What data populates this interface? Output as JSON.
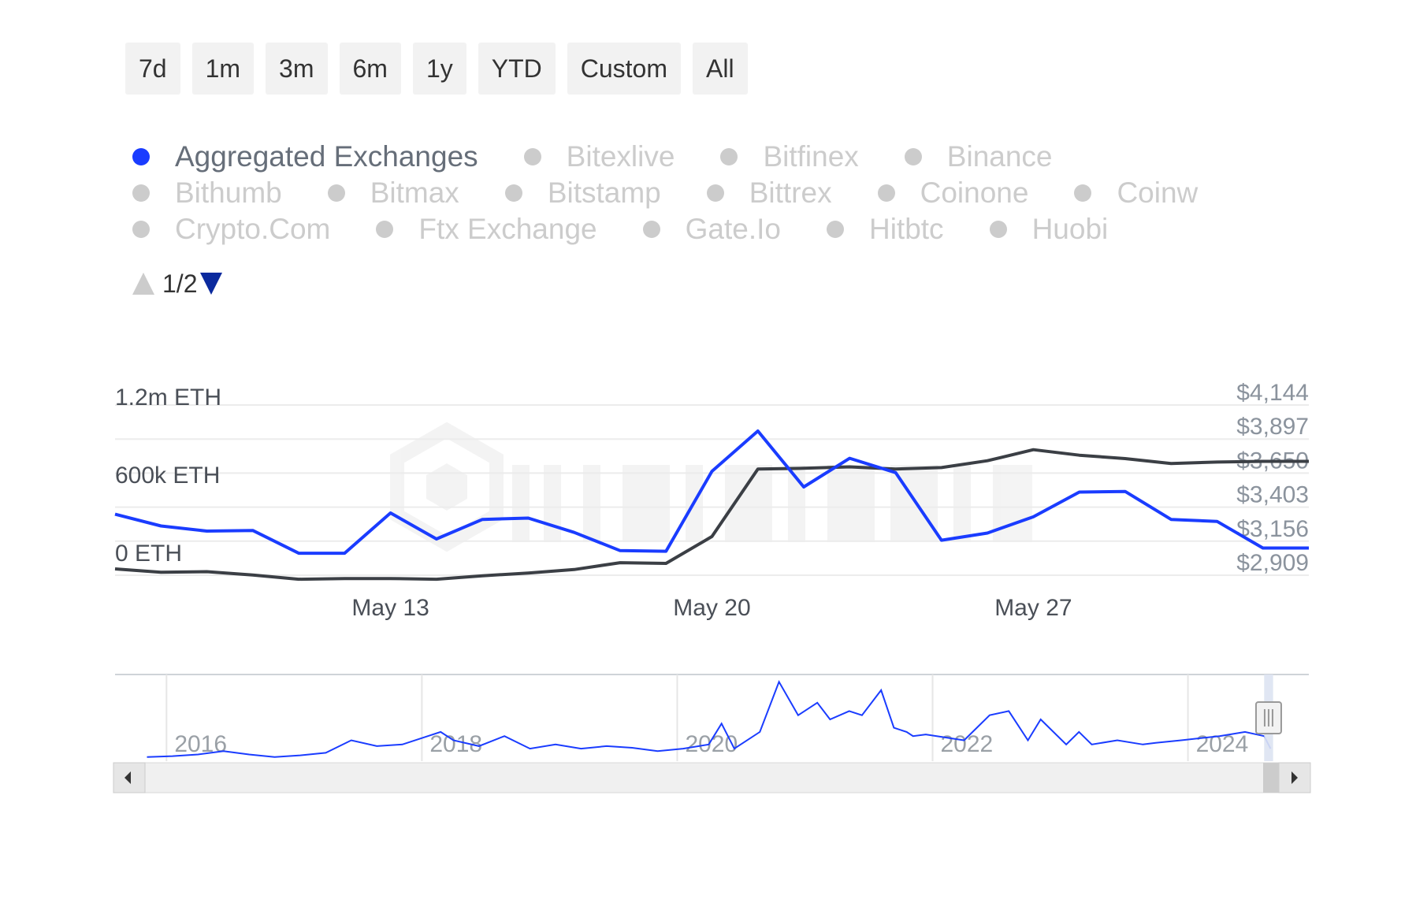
{
  "range_selector": {
    "buttons": [
      "7d",
      "1m",
      "3m",
      "6m",
      "1y",
      "YTD",
      "Custom",
      "All"
    ]
  },
  "legend": {
    "rows": [
      [
        "Aggregated Exchanges",
        "Bitexlive",
        "Bitfinex",
        "Binance"
      ],
      [
        "Bithumb",
        "Bitmax",
        "Bitstamp",
        "Bittrex",
        "Coinone",
        "Coinw"
      ],
      [
        "Crypto.Com",
        "Ftx Exchange",
        "Gate.Io",
        "Hitbtc",
        "Huobi"
      ]
    ],
    "active": "Aggregated Exchanges",
    "page": "1/2"
  },
  "colors": {
    "primary_series": "#1a3cff",
    "price_series": "#3b3f45",
    "inactive_legend": "#cccccc",
    "active_legend_text": "#666e79",
    "navigator_fill": "#dde3f2"
  },
  "chart_data": {
    "type": "line",
    "x_ticks": [
      "May 13",
      "May 20",
      "May 27"
    ],
    "x_tick_positions": [
      6,
      13,
      20
    ],
    "y_left": {
      "ticks": [
        "0 ETH",
        "600k ETH",
        "1.2m ETH"
      ],
      "tick_values": [
        0,
        600000,
        1200000
      ],
      "range": [
        0,
        1200000
      ]
    },
    "y_right": {
      "ticks": [
        "$2,909",
        "$3,156",
        "$3,403",
        "$3,650",
        "$3,897",
        "$4,144"
      ],
      "tick_values": [
        2909,
        3156,
        3403,
        3650,
        3897,
        4144
      ],
      "range": [
        2909,
        4144
      ]
    },
    "series": [
      {
        "axis": "left",
        "color": "#1a3cff",
        "x": [
          0,
          1,
          2,
          3,
          4,
          5,
          6,
          7,
          8,
          9,
          10,
          11,
          12,
          13,
          14,
          15,
          16,
          17,
          18,
          19,
          20,
          21,
          22,
          23,
          24,
          25,
          26
        ],
        "values": [
          360000,
          270000,
          230000,
          235000,
          60000,
          60000,
          370000,
          170000,
          320000,
          330000,
          220000,
          80000,
          75000,
          690000,
          1000000,
          570000,
          790000,
          680000,
          160000,
          215000,
          340000,
          530000,
          535000,
          320000,
          305000,
          100000,
          100000
        ]
      },
      {
        "axis": "right",
        "color": "#3b3f45",
        "x": [
          0,
          1,
          2,
          3,
          4,
          5,
          6,
          7,
          8,
          9,
          10,
          11,
          12,
          13,
          14,
          15,
          16,
          17,
          18,
          19,
          20,
          21,
          22,
          23,
          24,
          25,
          26
        ],
        "values": [
          2955,
          2930,
          2935,
          2910,
          2880,
          2885,
          2885,
          2880,
          2905,
          2925,
          2950,
          3000,
          2995,
          3190,
          3680,
          3685,
          3695,
          3680,
          3690,
          3740,
          3820,
          3780,
          3755,
          3720,
          3730,
          3735,
          3735
        ]
      }
    ],
    "navigator": {
      "x_ticks": [
        "2016",
        "2018",
        "2020",
        "2022",
        "2024"
      ],
      "x_tick_values": [
        2016,
        2018,
        2020,
        2022,
        2024
      ],
      "range": [
        2015.35,
        2024.7
      ],
      "selected_range": [
        2024.35,
        2024.42
      ],
      "series": {
        "x": [
          2015.6,
          2015.8,
          2016.0,
          2016.2,
          2016.4,
          2016.6,
          2016.8,
          2017.0,
          2017.2,
          2017.4,
          2017.6,
          2017.8,
          2017.9,
          2018.0,
          2018.2,
          2018.4,
          2018.6,
          2018.8,
          2019.0,
          2019.2,
          2019.4,
          2019.6,
          2019.8,
          2020.0,
          2020.1,
          2020.2,
          2020.4,
          2020.55,
          2020.7,
          2020.75,
          2020.85,
          2020.95,
          2021.1,
          2021.2,
          2021.35,
          2021.45,
          2021.55,
          2021.6,
          2021.7,
          2022.0,
          2022.2,
          2022.35,
          2022.5,
          2022.6,
          2022.8,
          2022.9,
          2023.0,
          2023.2,
          2023.4,
          2023.5,
          2023.7,
          2024.0,
          2024.2,
          2024.35,
          2024.4
        ],
        "values": [
          0.05,
          0.06,
          0.08,
          0.12,
          0.08,
          0.05,
          0.07,
          0.1,
          0.25,
          0.18,
          0.2,
          0.3,
          0.35,
          0.25,
          0.18,
          0.3,
          0.15,
          0.2,
          0.15,
          0.18,
          0.16,
          0.12,
          0.15,
          0.2,
          0.45,
          0.15,
          0.35,
          0.95,
          0.55,
          0.6,
          0.7,
          0.5,
          0.6,
          0.55,
          0.85,
          0.4,
          0.35,
          0.3,
          0.32,
          0.25,
          0.55,
          0.6,
          0.25,
          0.5,
          0.2,
          0.35,
          0.2,
          0.25,
          0.2,
          0.22,
          0.25,
          0.3,
          0.35,
          0.3,
          0.15
        ]
      }
    }
  }
}
